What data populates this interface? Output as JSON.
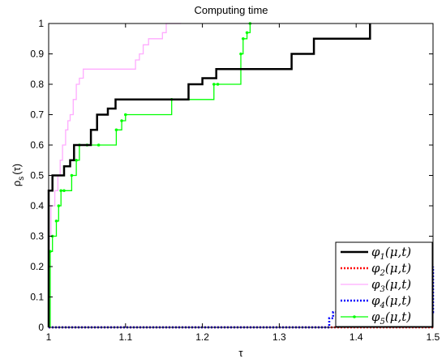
{
  "chart_data": {
    "type": "line",
    "title": "Computing time",
    "xlabel": "τ",
    "ylabel": "ρs(τ)",
    "ylabel_main": "ρ",
    "ylabel_sub": "s",
    "ylabel_arg": "(τ)",
    "xlim": [
      1,
      1.5
    ],
    "ylim": [
      0,
      1
    ],
    "xticks": [
      "1",
      "1.1",
      "1.2",
      "1.3",
      "1.4",
      "1.5"
    ],
    "xtick_values": [
      1,
      1.1,
      1.2,
      1.3,
      1.4,
      1.5
    ],
    "yticks": [
      "0",
      "0.1",
      "0.2",
      "0.3",
      "0.4",
      "0.5",
      "0.6",
      "0.7",
      "0.8",
      "0.9",
      "1"
    ],
    "ytick_values": [
      0,
      0.1,
      0.2,
      0.3,
      0.4,
      0.5,
      0.6,
      0.7,
      0.8,
      0.9,
      1
    ],
    "grid": false,
    "legend_position": "bottom-right",
    "series": [
      {
        "name": "φ1(μ,t)",
        "base": "φ",
        "sub": "1",
        "arg": "(μ,t)",
        "color": "#000000",
        "style": "solid",
        "marker": "none",
        "x": [
          1.0,
          1.0,
          1.005,
          1.005,
          1.02,
          1.02,
          1.028,
          1.028,
          1.033,
          1.033,
          1.055,
          1.055,
          1.063,
          1.063,
          1.077,
          1.077,
          1.087,
          1.087,
          1.165,
          1.165,
          1.182,
          1.182,
          1.2,
          1.2,
          1.218,
          1.218,
          1.316,
          1.316,
          1.345,
          1.345,
          1.418,
          1.418
        ],
        "y": [
          0.0,
          0.45,
          0.45,
          0.5,
          0.5,
          0.53,
          0.53,
          0.55,
          0.55,
          0.6,
          0.6,
          0.65,
          0.65,
          0.7,
          0.7,
          0.72,
          0.72,
          0.75,
          0.75,
          0.75,
          0.75,
          0.8,
          0.8,
          0.82,
          0.82,
          0.85,
          0.85,
          0.9,
          0.9,
          0.95,
          0.95,
          1.0
        ]
      },
      {
        "name": "φ2(μ,t)",
        "base": "φ",
        "sub": "2",
        "arg": "(μ,t)",
        "color": "#ff0000",
        "style": "dotted",
        "marker": "none",
        "x": [
          1.0,
          1.5
        ],
        "y": [
          0.0,
          0.0
        ]
      },
      {
        "name": "φ3(μ,t)",
        "base": "φ",
        "sub": "3",
        "arg": "(μ,t)",
        "color": "#ffaaff",
        "style": "solid",
        "marker": "none",
        "x": [
          1.0,
          1.0,
          1.003,
          1.003,
          1.008,
          1.008,
          1.012,
          1.012,
          1.015,
          1.015,
          1.018,
          1.018,
          1.022,
          1.022,
          1.025,
          1.025,
          1.028,
          1.028,
          1.032,
          1.032,
          1.036,
          1.036,
          1.04,
          1.04,
          1.045,
          1.045,
          1.05,
          1.05,
          1.113,
          1.113,
          1.118,
          1.118,
          1.123,
          1.123,
          1.13,
          1.13,
          1.148,
          1.148,
          1.153,
          1.153,
          1.172,
          1.172
        ],
        "y": [
          0.0,
          0.3,
          0.3,
          0.4,
          0.4,
          0.45,
          0.45,
          0.5,
          0.5,
          0.55,
          0.55,
          0.6,
          0.6,
          0.65,
          0.65,
          0.68,
          0.68,
          0.7,
          0.7,
          0.75,
          0.75,
          0.8,
          0.8,
          0.82,
          0.82,
          0.85,
          0.85,
          0.85,
          0.85,
          0.88,
          0.88,
          0.9,
          0.9,
          0.93,
          0.93,
          0.95,
          0.95,
          0.97,
          0.97,
          1.0,
          1.0,
          1.0
        ]
      },
      {
        "name": "φ4(μ,t)",
        "base": "φ",
        "sub": "4",
        "arg": "(μ,t)",
        "color": "#0000ff",
        "style": "dotted",
        "marker": "none",
        "x": [
          1.0,
          1.365,
          1.365,
          1.37,
          1.37,
          1.5,
          1.5
        ],
        "y": [
          0.0,
          0.0,
          0.03,
          0.03,
          0.05,
          0.05,
          0.2
        ]
      },
      {
        "name": "φ5(μ,t)",
        "base": "φ",
        "sub": "5",
        "arg": "(μ,t)",
        "color": "#00ff00",
        "style": "solid",
        "marker": "dot",
        "x": [
          1.002,
          1.002,
          1.005,
          1.005,
          1.01,
          1.01,
          1.013,
          1.013,
          1.016,
          1.016,
          1.02,
          1.02,
          1.03,
          1.03,
          1.036,
          1.036,
          1.04,
          1.04,
          1.05,
          1.05,
          1.065,
          1.065,
          1.088,
          1.088,
          1.095,
          1.095,
          1.1,
          1.1,
          1.16,
          1.16,
          1.215,
          1.215,
          1.22,
          1.22,
          1.25,
          1.25,
          1.253,
          1.253,
          1.258,
          1.258,
          1.262,
          1.262
        ],
        "y": [
          0.0,
          0.25,
          0.25,
          0.3,
          0.3,
          0.35,
          0.35,
          0.4,
          0.4,
          0.45,
          0.45,
          0.45,
          0.45,
          0.5,
          0.5,
          0.55,
          0.55,
          0.6,
          0.6,
          0.6,
          0.6,
          0.6,
          0.6,
          0.65,
          0.65,
          0.68,
          0.68,
          0.7,
          0.7,
          0.75,
          0.75,
          0.8,
          0.8,
          0.8,
          0.8,
          0.9,
          0.9,
          0.95,
          0.95,
          0.97,
          0.97,
          1.0
        ]
      }
    ]
  }
}
